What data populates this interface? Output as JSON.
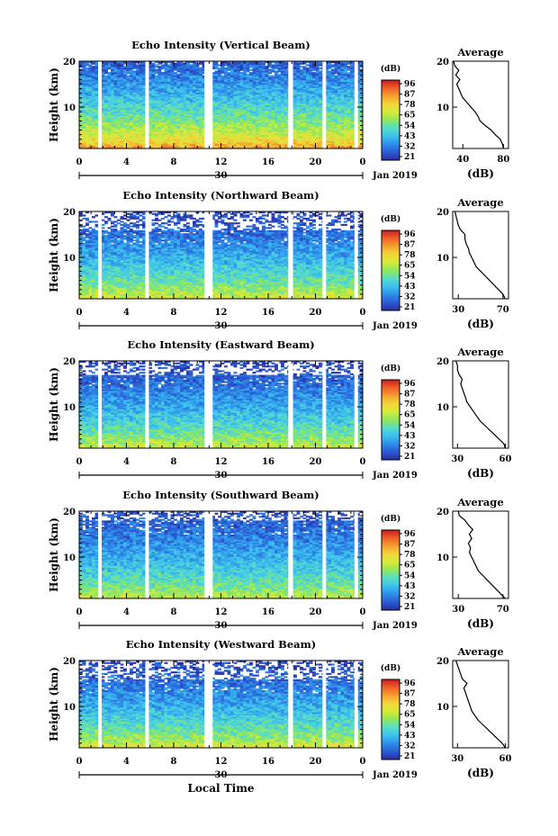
{
  "figure": {
    "xlabel": "Local Time",
    "xticks": [
      "0",
      "4",
      "8",
      "12",
      "16",
      "20",
      "0"
    ],
    "date_marker": "30",
    "month_label": "Jan 2019",
    "ylabel": "Height (km)",
    "yticks": [
      "10",
      "20"
    ],
    "colorbar_unit": "(dB)",
    "colorbar_ticks": [
      "96",
      "87",
      "78",
      "65",
      "54",
      "43",
      "32",
      "21"
    ],
    "colormap": [
      "#2b2fa0",
      "#2b5bd6",
      "#2e8fe8",
      "#3cc1ef",
      "#58dcc8",
      "#8ee85a",
      "#d6ea3c",
      "#f2d63a",
      "#f5a030",
      "#f0602a",
      "#c81e1e"
    ],
    "avg_title": "Average",
    "avg_xlabel": "(dB)",
    "gap_color": "#ffffff"
  },
  "chart_data": [
    {
      "type": "heatmap",
      "title": "Echo Intensity (Vertical Beam)",
      "x_range_hours": [
        0,
        24
      ],
      "y_range_km": [
        1,
        20
      ],
      "color_range_db": [
        21,
        96
      ],
      "data_gaps_hours": [
        [
          1.6,
          1.9
        ],
        [
          5.6,
          5.9
        ],
        [
          10.6,
          11.3
        ],
        [
          17.7,
          18.1
        ],
        [
          20.6,
          20.9
        ],
        [
          23.3,
          23.6
        ]
      ],
      "surface_db": 85,
      "top_db": 28,
      "noise_top_km": 20,
      "average_profile": {
        "type": "line",
        "xticks": [
          "40",
          "80"
        ],
        "xlim": [
          30,
          85
        ],
        "height_km": [
          1,
          2,
          3,
          4,
          5,
          6,
          7,
          8,
          9,
          10,
          11,
          12,
          13,
          14,
          15,
          16,
          17,
          18,
          19,
          20
        ],
        "db": [
          80,
          79,
          77,
          72,
          68,
          62,
          57,
          55,
          52,
          48,
          44,
          40,
          38,
          36,
          34,
          37,
          33,
          36,
          32,
          31
        ]
      }
    },
    {
      "type": "heatmap",
      "title": "Echo Intensity (Northward Beam)",
      "x_range_hours": [
        0,
        24
      ],
      "y_range_km": [
        1,
        20
      ],
      "color_range_db": [
        21,
        96
      ],
      "data_gaps_hours": [
        [
          1.6,
          1.9
        ],
        [
          5.6,
          5.9
        ],
        [
          10.6,
          11.3
        ],
        [
          17.7,
          18.1
        ],
        [
          20.6,
          20.9
        ],
        [
          23.3,
          23.6
        ]
      ],
      "surface_db": 72,
      "top_db": 24,
      "noise_top_km": 16,
      "average_profile": {
        "type": "line",
        "xticks": [
          "30",
          "70"
        ],
        "xlim": [
          25,
          75
        ],
        "height_km": [
          1,
          2,
          3,
          4,
          5,
          6,
          7,
          8,
          9,
          10,
          11,
          12,
          13,
          14,
          15,
          16,
          17,
          18,
          19,
          20
        ],
        "db": [
          72,
          70,
          66,
          62,
          58,
          54,
          50,
          46,
          44,
          42,
          40,
          39,
          37,
          36,
          36,
          32,
          30,
          29,
          28,
          27
        ]
      }
    },
    {
      "type": "heatmap",
      "title": "Echo Intensity (Eastward Beam)",
      "x_range_hours": [
        0,
        24
      ],
      "y_range_km": [
        1,
        20
      ],
      "color_range_db": [
        21,
        96
      ],
      "data_gaps_hours": [
        [
          1.6,
          1.9
        ],
        [
          5.6,
          5.9
        ],
        [
          10.6,
          11.3
        ],
        [
          17.7,
          18.1
        ],
        [
          20.6,
          20.9
        ],
        [
          23.3,
          23.6
        ]
      ],
      "surface_db": 70,
      "top_db": 24,
      "noise_top_km": 17,
      "average_profile": {
        "type": "line",
        "xticks": [
          "30",
          "60"
        ],
        "xlim": [
          27,
          62
        ],
        "height_km": [
          1,
          2,
          3,
          4,
          5,
          6,
          7,
          8,
          9,
          10,
          11,
          12,
          13,
          14,
          15,
          16,
          17,
          18,
          19,
          20
        ],
        "db": [
          60,
          59,
          56,
          53,
          50,
          47,
          44,
          42,
          40,
          38,
          36,
          35,
          34,
          33,
          32,
          33,
          31,
          30,
          30,
          29
        ]
      }
    },
    {
      "type": "heatmap",
      "title": "Echo Intensity (Southward Beam)",
      "x_range_hours": [
        0,
        24
      ],
      "y_range_km": [
        1,
        20
      ],
      "color_range_db": [
        21,
        96
      ],
      "data_gaps_hours": [
        [
          1.6,
          1.9
        ],
        [
          5.6,
          5.9
        ],
        [
          10.6,
          11.3
        ],
        [
          17.7,
          18.1
        ],
        [
          20.6,
          20.9
        ],
        [
          23.3,
          23.6
        ]
      ],
      "surface_db": 68,
      "top_db": 26,
      "noise_top_km": 18,
      "average_profile": {
        "type": "line",
        "xticks": [
          "30",
          "70"
        ],
        "xlim": [
          25,
          75
        ],
        "height_km": [
          1,
          2,
          3,
          4,
          5,
          6,
          7,
          8,
          9,
          10,
          11,
          12,
          13,
          14,
          15,
          16,
          17,
          18,
          19,
          20
        ],
        "db": [
          72,
          68,
          64,
          60,
          56,
          52,
          48,
          46,
          44,
          42,
          40,
          41,
          39,
          42,
          40,
          43,
          39,
          36,
          31,
          30
        ]
      }
    },
    {
      "type": "heatmap",
      "title": "Echo Intensity (Westward Beam)",
      "x_range_hours": [
        0,
        24
      ],
      "y_range_km": [
        1,
        20
      ],
      "color_range_db": [
        21,
        96
      ],
      "data_gaps_hours": [
        [
          1.6,
          1.9
        ],
        [
          5.6,
          5.9
        ],
        [
          10.6,
          11.3
        ],
        [
          17.7,
          18.1
        ],
        [
          20.6,
          20.9
        ],
        [
          23.3,
          23.6
        ]
      ],
      "surface_db": 72,
      "top_db": 24,
      "noise_top_km": 16,
      "average_profile": {
        "type": "line",
        "xticks": [
          "30",
          "60"
        ],
        "xlim": [
          27,
          62
        ],
        "height_km": [
          1,
          2,
          3,
          4,
          5,
          6,
          7,
          8,
          9,
          10,
          11,
          12,
          13,
          14,
          15,
          16,
          17,
          18,
          19,
          20
        ],
        "db": [
          60,
          58,
          55,
          52,
          49,
          46,
          43,
          41,
          39,
          38,
          37,
          36,
          35,
          34,
          36,
          33,
          32,
          31,
          30,
          29
        ]
      }
    }
  ]
}
